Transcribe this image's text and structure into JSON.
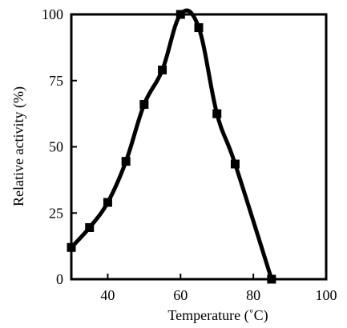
{
  "chart_data": {
    "type": "line",
    "xlabel": "Temperature (˚C)",
    "ylabel": "Relative activity (%)",
    "xlim": [
      30,
      100
    ],
    "ylim": [
      0,
      100
    ],
    "xticks": [
      40,
      60,
      80,
      100
    ],
    "yticks": [
      0,
      25,
      50,
      75,
      100
    ],
    "xtick_labels": [
      "40",
      "60",
      "80",
      "100"
    ],
    "ytick_labels": [
      "0",
      "25",
      "50",
      "75",
      "100"
    ],
    "grid": false,
    "legend": "none",
    "series": [
      {
        "x": [
          30,
          35,
          40,
          45,
          50,
          55,
          60,
          65,
          70,
          75,
          85
        ],
        "y": [
          12,
          19.5,
          29,
          44.5,
          66,
          79,
          100,
          95,
          62.5,
          43.5,
          0
        ]
      }
    ],
    "line_color": "#000000",
    "marker": "square"
  }
}
